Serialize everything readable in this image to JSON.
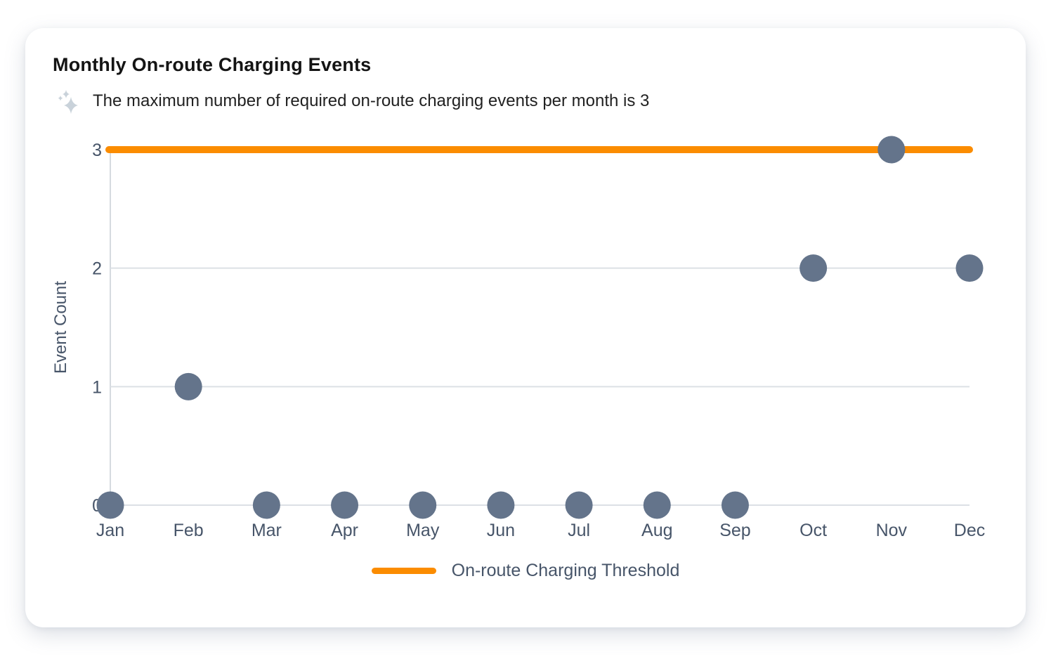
{
  "header": {
    "title": "Monthly On-route Charging Events",
    "subtitle": "The maximum number of required on-route charging events per month is 3"
  },
  "colors": {
    "point": "#64748B",
    "threshold": "#FB8C00",
    "grid": "#DCE0E5",
    "axis_line": "#D5DADF",
    "axis_text": "#475569",
    "sparkle": "#C9D2DA"
  },
  "chart_data": {
    "type": "scatter",
    "title": "Monthly On-route Charging Events",
    "categories": [
      "Jan",
      "Feb",
      "Mar",
      "Apr",
      "May",
      "Jun",
      "Jul",
      "Aug",
      "Sep",
      "Oct",
      "Nov",
      "Dec"
    ],
    "series": [
      {
        "name": "Monthly On-route Charging Events",
        "values": [
          0,
          1,
          0,
          0,
          0,
          0,
          0,
          0,
          0,
          2,
          3,
          2
        ]
      }
    ],
    "threshold": {
      "value": 3,
      "label": "On-route Charging Threshold"
    },
    "xlabel": "",
    "ylabel": "Event Count",
    "yticks": [
      0,
      1,
      2,
      3
    ],
    "ylim": [
      0,
      3
    ],
    "grid": true,
    "legend_position": "bottom"
  },
  "legend": {
    "items": [
      {
        "label": "On-route Charging Threshold",
        "color": "#FB8C00"
      }
    ]
  }
}
